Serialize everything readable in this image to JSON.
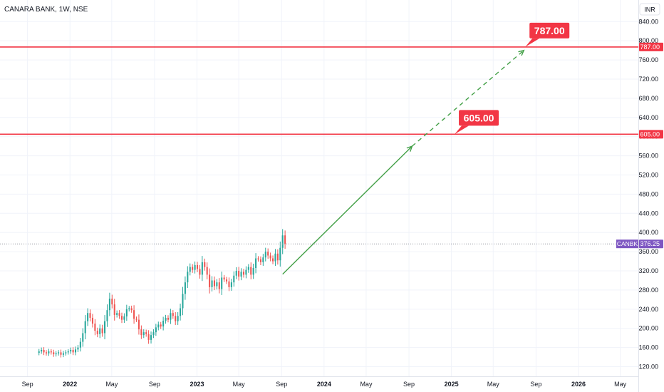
{
  "symbol_title": "CANARA BANK, 1W, NSE",
  "currency": "INR",
  "colors": {
    "up": "#26a69a",
    "down": "#ef5350",
    "level": "#f23645",
    "projection": "#43a047",
    "last_price_badge": "#7e57c2",
    "grid": "#f0f3fa"
  },
  "chart_data": {
    "type": "candlestick",
    "title": "CANARA BANK, 1W, NSE",
    "y_axis": {
      "unit": "INR",
      "range": [
        100,
        885
      ],
      "ticks": [
        120,
        160,
        200,
        240,
        280,
        320,
        360,
        400,
        440,
        480,
        520,
        560,
        600,
        640,
        680,
        720,
        760,
        800,
        840
      ],
      "tick_labels": [
        "120.00",
        "160.00",
        "200.00",
        "240.00",
        "280.00",
        "320.00",
        "360.00",
        "400.00",
        "440.00",
        "480.00",
        "520.00",
        "560.00",
        "600.00",
        "640.00",
        "680.00",
        "720.00",
        "760.00",
        "800.00",
        "840.00"
      ]
    },
    "x_axis": {
      "range": [
        "2021-06-14",
        "2026-06-22"
      ],
      "ticks": [
        {
          "label": "Sep",
          "date": "2021-09-01",
          "bold": false
        },
        {
          "label": "2022",
          "date": "2022-01-01",
          "bold": true
        },
        {
          "label": "May",
          "date": "2022-05-01",
          "bold": false
        },
        {
          "label": "Sep",
          "date": "2022-09-01",
          "bold": false
        },
        {
          "label": "2023",
          "date": "2023-01-01",
          "bold": true
        },
        {
          "label": "May",
          "date": "2023-05-01",
          "bold": false
        },
        {
          "label": "Sep",
          "date": "2023-09-01",
          "bold": false
        },
        {
          "label": "2024",
          "date": "2024-01-01",
          "bold": true
        },
        {
          "label": "May",
          "date": "2024-05-01",
          "bold": false
        },
        {
          "label": "Sep",
          "date": "2024-09-01",
          "bold": false
        },
        {
          "label": "2025",
          "date": "2025-01-01",
          "bold": true
        },
        {
          "label": "May",
          "date": "2025-05-01",
          "bold": false
        },
        {
          "label": "Sep",
          "date": "2025-09-01",
          "bold": false
        },
        {
          "label": "2026",
          "date": "2026-01-01",
          "bold": true
        },
        {
          "label": "May",
          "date": "2026-05-01",
          "bold": false
        }
      ]
    },
    "grid": true,
    "series": [
      {
        "type": "candlestick",
        "name": "CANBK",
        "weekly_closes": [
          152,
          155,
          150,
          148,
          152,
          150,
          146,
          148,
          150,
          145,
          148,
          150,
          152,
          155,
          150,
          156,
          160,
          172,
          190,
          215,
          232,
          222,
          210,
          195,
          188,
          200,
          190,
          215,
          238,
          262,
          250,
          228,
          232,
          226,
          218,
          225,
          240,
          242,
          238,
          220,
          218,
          198,
          186,
          192,
          188,
          176,
          186,
          192,
          202,
          208,
          204,
          216,
          222,
          218,
          232,
          226,
          215,
          226,
          242,
          272,
          296,
          318,
          328,
          322,
          332,
          324,
          312,
          338,
          328,
          312,
          286,
          300,
          288,
          296,
          282,
          306,
          302,
          298,
          286,
          296,
          310,
          320,
          308,
          318,
          312,
          322,
          328,
          312,
          326,
          346,
          344,
          338,
          348,
          360,
          352,
          346,
          340,
          356,
          342,
          368,
          394,
          376.25
        ],
        "last_price": 376.25,
        "last_price_label": "376.25",
        "badge_name": "CANBK"
      }
    ],
    "levels": [
      {
        "value": 605,
        "label": "605.00"
      },
      {
        "value": 787,
        "label": "787.00"
      }
    ],
    "projection": [
      {
        "date": "2023-09-04",
        "value": 313
      },
      {
        "date": "2024-09-10",
        "value": 580
      },
      {
        "date": "2025-07-28",
        "value": 780
      }
    ]
  }
}
